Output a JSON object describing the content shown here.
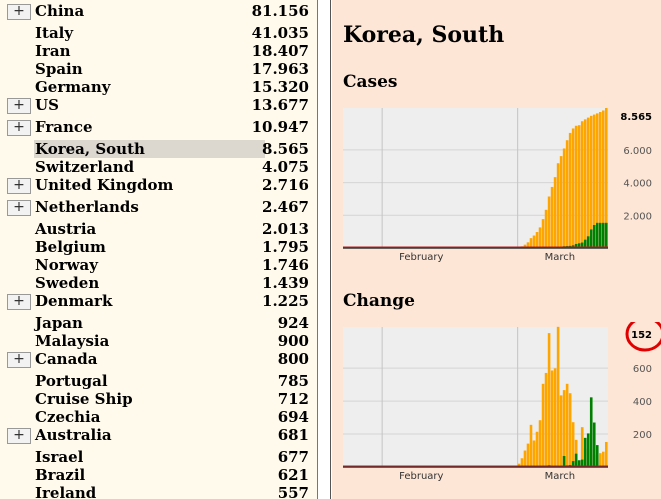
{
  "countries": [
    {
      "name": "China",
      "value": "81.156",
      "expand": true
    },
    {
      "name": "Italy",
      "value": "41.035",
      "expand": false
    },
    {
      "name": "Iran",
      "value": "18.407",
      "expand": false
    },
    {
      "name": "Spain",
      "value": "17.963",
      "expand": false
    },
    {
      "name": "Germany",
      "value": "15.320",
      "expand": false
    },
    {
      "name": "US",
      "value": "13.677",
      "expand": true
    },
    {
      "name": "France",
      "value": "10.947",
      "expand": true
    },
    {
      "name": "Korea, South",
      "value": "8.565",
      "expand": false,
      "selected": true
    },
    {
      "name": "Switzerland",
      "value": "4.075",
      "expand": false
    },
    {
      "name": "United Kingdom",
      "value": "2.716",
      "expand": true
    },
    {
      "name": "Netherlands",
      "value": "2.467",
      "expand": true
    },
    {
      "name": "Austria",
      "value": "2.013",
      "expand": false
    },
    {
      "name": "Belgium",
      "value": "1.795",
      "expand": false
    },
    {
      "name": "Norway",
      "value": "1.746",
      "expand": false
    },
    {
      "name": "Sweden",
      "value": "1.439",
      "expand": false
    },
    {
      "name": "Denmark",
      "value": "1.225",
      "expand": true
    },
    {
      "name": "Japan",
      "value": "924",
      "expand": false
    },
    {
      "name": "Malaysia",
      "value": "900",
      "expand": false
    },
    {
      "name": "Canada",
      "value": "800",
      "expand": true
    },
    {
      "name": "Portugal",
      "value": "785",
      "expand": false
    },
    {
      "name": "Cruise Ship",
      "value": "712",
      "expand": false
    },
    {
      "name": "Czechia",
      "value": "694",
      "expand": false
    },
    {
      "name": "Australia",
      "value": "681",
      "expand": true
    },
    {
      "name": "Israel",
      "value": "677",
      "expand": false
    },
    {
      "name": "Brazil",
      "value": "621",
      "expand": false
    },
    {
      "name": "Ireland",
      "value": "557",
      "expand": false
    }
  ],
  "expand_label": "+",
  "detail": {
    "title": "Korea, South",
    "cases_heading": "Cases",
    "change_heading": "Change"
  },
  "colors": {
    "confirmed": "#ffa500",
    "recovered": "#008000",
    "deaths": "#b22222",
    "highlight_circle": "#e00000"
  },
  "chart_data": [
    {
      "type": "bar",
      "title": "Cases",
      "x_ticks": [
        "February",
        "March"
      ],
      "y_ticks": [
        "2.000",
        "4.000",
        "6.000"
      ],
      "max_label": "8.565",
      "ylim": [
        0,
        8565
      ],
      "grid": true,
      "series": [
        {
          "values": [
            1,
            1,
            1,
            1,
            1,
            1,
            1,
            1,
            1,
            1,
            1,
            1,
            1,
            1,
            1,
            1,
            1,
            1,
            1,
            1,
            1,
            1,
            1,
            1,
            1,
            1,
            1,
            1,
            1,
            1,
            1,
            1,
            1,
            1,
            1,
            1,
            1,
            1,
            1,
            1,
            1,
            1,
            1,
            1,
            1,
            1,
            1,
            1,
            1,
            1,
            1,
            1,
            1,
            1,
            1,
            1,
            1,
            31,
            51,
            104,
            204,
            346,
            602,
            763,
            977,
            1261,
            1766,
            2337,
            3150,
            3736,
            4335,
            5186,
            5621,
            6088,
            6593,
            7041,
            7313,
            7478,
            7513,
            7755,
            7869,
            7979,
            8086,
            8162,
            8236,
            8320,
            8413,
            8565
          ]
        },
        {
          "values": [
            0,
            0,
            0,
            0,
            0,
            0,
            0,
            0,
            0,
            0,
            0,
            0,
            0,
            0,
            0,
            0,
            0,
            0,
            0,
            0,
            0,
            0,
            0,
            0,
            0,
            0,
            0,
            0,
            0,
            0,
            0,
            0,
            0,
            0,
            0,
            0,
            0,
            0,
            0,
            0,
            0,
            0,
            0,
            0,
            0,
            0,
            0,
            0,
            0,
            0,
            0,
            0,
            0,
            0,
            0,
            0,
            0,
            16,
            16,
            16,
            17,
            18,
            18,
            22,
            22,
            22,
            24,
            27,
            28,
            30,
            30,
            34,
            41,
            108,
            118,
            130,
            166,
            247,
            288,
            333,
            510,
            714,
            1137,
            1407,
            1540,
            1540,
            1540,
            1540
          ]
        },
        {
          "values": [
            0,
            0,
            0,
            0,
            0,
            0,
            0,
            0,
            0,
            0,
            0,
            0,
            0,
            0,
            0,
            0,
            0,
            0,
            0,
            0,
            0,
            0,
            0,
            0,
            0,
            0,
            0,
            0,
            0,
            0,
            0,
            0,
            0,
            0,
            0,
            0,
            0,
            0,
            0,
            0,
            0,
            0,
            0,
            0,
            0,
            0,
            0,
            0,
            0,
            0,
            0,
            0,
            0,
            0,
            0,
            0,
            0,
            1,
            2,
            2,
            6,
            8,
            10,
            12,
            13,
            13,
            16,
            17,
            28,
            28,
            35,
            35,
            42,
            44,
            50,
            53,
            54,
            60,
            66,
            66,
            72,
            75,
            75,
            81,
            84,
            91,
            94,
            102
          ]
        }
      ]
    },
    {
      "type": "bar",
      "title": "Change",
      "x_ticks": [
        "February",
        "March"
      ],
      "y_ticks": [
        "200",
        "400",
        "600"
      ],
      "max_label": "152",
      "ylim": [
        0,
        850
      ],
      "grid": true,
      "series": [
        {
          "values": [
            0,
            0,
            0,
            0,
            0,
            0,
            0,
            0,
            0,
            0,
            0,
            0,
            0,
            0,
            0,
            0,
            0,
            0,
            0,
            0,
            0,
            0,
            0,
            0,
            0,
            0,
            0,
            0,
            0,
            0,
            0,
            0,
            0,
            0,
            0,
            0,
            0,
            0,
            0,
            0,
            0,
            0,
            0,
            0,
            0,
            0,
            0,
            0,
            0,
            0,
            0,
            0,
            0,
            0,
            0,
            0,
            0,
            0,
            20,
            53,
            100,
            142,
            256,
            161,
            214,
            284,
            505,
            571,
            813,
            586,
            599,
            851,
            435,
            467,
            505,
            448,
            272,
            165,
            35,
            242,
            114,
            110,
            107,
            76,
            74,
            84,
            93,
            152
          ]
        },
        {
          "values": [
            0,
            0,
            0,
            0,
            0,
            0,
            0,
            0,
            0,
            0,
            0,
            0,
            0,
            0,
            0,
            0,
            0,
            0,
            0,
            0,
            0,
            0,
            0,
            0,
            0,
            0,
            0,
            0,
            0,
            0,
            0,
            0,
            0,
            0,
            0,
            0,
            0,
            0,
            0,
            0,
            0,
            0,
            0,
            0,
            0,
            0,
            0,
            0,
            0,
            0,
            0,
            0,
            0,
            0,
            0,
            0,
            0,
            0,
            0,
            0,
            1,
            1,
            0,
            4,
            0,
            0,
            2,
            3,
            1,
            2,
            0,
            4,
            7,
            67,
            10,
            12,
            36,
            81,
            41,
            45,
            177,
            204,
            423,
            270,
            133,
            0,
            0,
            0
          ]
        },
        {
          "values": [
            0,
            0,
            0,
            0,
            0,
            0,
            0,
            0,
            0,
            0,
            0,
            0,
            0,
            0,
            0,
            0,
            0,
            0,
            0,
            0,
            0,
            0,
            0,
            0,
            0,
            0,
            0,
            0,
            0,
            0,
            0,
            0,
            0,
            0,
            0,
            0,
            0,
            0,
            0,
            0,
            0,
            0,
            0,
            0,
            0,
            0,
            0,
            0,
            0,
            0,
            0,
            0,
            0,
            0,
            0,
            0,
            0,
            0,
            1,
            0,
            4,
            2,
            2,
            2,
            1,
            0,
            3,
            1,
            11,
            0,
            7,
            0,
            7,
            2,
            6,
            3,
            1,
            6,
            6,
            0,
            6,
            3,
            0,
            6,
            3,
            7,
            3,
            8
          ]
        }
      ]
    }
  ]
}
